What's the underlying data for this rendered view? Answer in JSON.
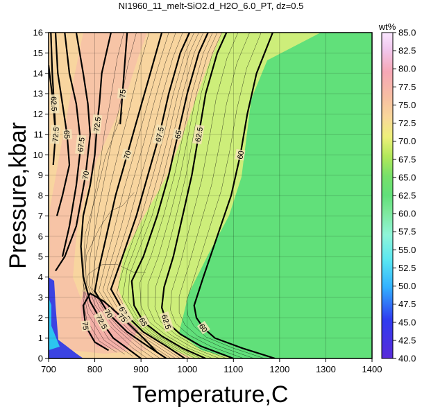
{
  "chart_data": {
    "type": "contour",
    "title": "NI1960_11_melt-SiO2.d_H2O_6.0_PT, dz=0.5",
    "xlabel": "Temperature,C",
    "ylabel": "Pressure,kbar",
    "xlim": [
      700,
      1400
    ],
    "ylim": [
      0,
      16
    ],
    "xticks": [
      "700",
      "800",
      "900",
      "1000",
      "1100",
      "1200",
      "1300",
      "1400"
    ],
    "yticks": [
      "0",
      "1",
      "2",
      "3",
      "4",
      "5",
      "6",
      "7",
      "8",
      "9",
      "10",
      "11",
      "12",
      "13",
      "14",
      "15",
      "16"
    ],
    "grid": true,
    "colorbar": {
      "label": "wt%",
      "range": [
        40,
        85
      ],
      "ticks": [
        "40.0",
        "42.5",
        "45.0",
        "47.5",
        "50.0",
        "52.5",
        "55.0",
        "57.5",
        "60.0",
        "62.5",
        "65.0",
        "67.5",
        "70.0",
        "72.5",
        "75.0",
        "77.5",
        "80.0",
        "82.5",
        "85.0"
      ]
    },
    "contour_lines": [
      {
        "level": 60,
        "label": "60",
        "points": [
          [
            1190,
            0
          ],
          [
            1120,
            0.5
          ],
          [
            1060,
            1
          ],
          [
            1035,
            1.5
          ],
          [
            1020,
            2
          ],
          [
            1015,
            2.6
          ],
          [
            1035,
            4
          ],
          [
            1065,
            6
          ],
          [
            1095,
            8
          ],
          [
            1115,
            10
          ],
          [
            1130,
            12
          ],
          [
            1150,
            14
          ],
          [
            1185,
            16
          ]
        ]
      },
      {
        "level": 62.5,
        "label": "62.5",
        "points": [
          [
            1100,
            0
          ],
          [
            1030,
            0.6
          ],
          [
            985,
            1.2
          ],
          [
            955,
            1.8
          ],
          [
            945,
            2.5
          ],
          [
            950,
            3.5
          ],
          [
            970,
            5
          ],
          [
            990,
            7
          ],
          [
            1010,
            9
          ],
          [
            1025,
            11
          ],
          [
            1040,
            13
          ],
          [
            1065,
            15
          ],
          [
            1085,
            16
          ]
        ]
      },
      {
        "level": 65,
        "label": "65",
        "points": [
          [
            1040,
            0
          ],
          [
            990,
            0.5
          ],
          [
            945,
            1.1
          ],
          [
            905,
            1.8
          ],
          [
            885,
            2.6
          ],
          [
            880,
            3.8
          ],
          [
            905,
            5
          ],
          [
            935,
            7
          ],
          [
            960,
            9
          ],
          [
            980,
            11
          ],
          [
            1000,
            13
          ],
          [
            1025,
            15
          ],
          [
            1045,
            16
          ]
        ]
      },
      {
        "level": 67.5,
        "label": "67.5",
        "points": [
          [
            995,
            0
          ],
          [
            955,
            0.6
          ],
          [
            905,
            1.3
          ],
          [
            865,
            2.2
          ],
          [
            835,
            3.4
          ],
          [
            860,
            5
          ],
          [
            890,
            7
          ],
          [
            915,
            9
          ],
          [
            940,
            11
          ],
          [
            960,
            13
          ],
          [
            985,
            15
          ],
          [
            1005,
            16
          ]
        ]
      },
      {
        "level": 70,
        "label": "70",
        "points": [
          [
            955,
            0
          ],
          [
            915,
            0.6
          ],
          [
            870,
            1.3
          ],
          [
            830,
            2.2
          ],
          [
            800,
            3.3
          ],
          [
            810,
            4.5
          ],
          [
            825,
            6
          ],
          [
            845,
            8
          ],
          [
            870,
            10
          ],
          [
            895,
            12
          ],
          [
            920,
            14
          ],
          [
            945,
            16
          ]
        ]
      },
      {
        "level": 72.5,
        "label": "72.5",
        "points": [
          [
            900,
            0
          ],
          [
            870,
            0.5
          ],
          [
            840,
            1.0
          ],
          [
            815,
            1.8
          ],
          [
            790,
            2.8
          ],
          [
            775,
            4
          ],
          [
            770,
            5.5
          ],
          [
            775,
            7
          ],
          [
            790,
            8.5
          ],
          [
            800,
            10
          ],
          [
            805,
            11.5
          ],
          [
            810,
            12.5
          ],
          [
            815,
            14
          ],
          [
            825,
            15
          ],
          [
            835,
            16
          ]
        ]
      },
      {
        "level": 75,
        "label": "75",
        "points": [
          [
            830,
            0.4
          ],
          [
            800,
            0.8
          ],
          [
            780,
            1.6
          ],
          [
            775,
            2.6
          ],
          [
            790,
            3.2
          ],
          [
            820,
            2.8
          ],
          [
            860,
            2.0
          ],
          [
            905,
            1.0
          ],
          [
            935,
            0.3
          ]
        ]
      },
      {
        "level": 72.5,
        "label": "72.5",
        "points": [
          [
            700,
            14.4
          ],
          [
            710,
            12.5
          ],
          [
            715,
            11
          ],
          [
            710,
            9.5
          ]
        ]
      },
      {
        "level": 65,
        "label": "65",
        "points": [
          [
            715,
            16
          ],
          [
            720,
            14
          ],
          [
            730,
            12.5
          ],
          [
            740,
            11
          ],
          [
            745,
            9.5
          ],
          [
            730,
            8
          ],
          [
            718,
            7
          ]
        ]
      },
      {
        "level": 67.5,
        "label": "67.5",
        "points": [
          [
            735,
            16
          ],
          [
            745,
            14
          ],
          [
            760,
            12.5
          ],
          [
            770,
            10.5
          ],
          [
            760,
            8.5
          ],
          [
            745,
            6.5
          ],
          [
            730,
            5
          ]
        ]
      },
      {
        "level": 70,
        "label": "70",
        "points": [
          [
            760,
            16
          ],
          [
            775,
            14
          ],
          [
            785,
            12.5
          ],
          [
            790,
            11
          ],
          [
            780,
            9
          ],
          [
            760,
            6.5
          ],
          [
            735,
            5
          ],
          [
            715,
            4.3
          ]
        ]
      },
      {
        "level": 62.5,
        "label": "62.5",
        "points": [
          [
            705,
            16
          ],
          [
            708,
            14
          ],
          [
            712,
            12.5
          ],
          [
            715,
            11
          ]
        ]
      },
      {
        "level": 75,
        "label": "75",
        "points": [
          [
            870,
            16
          ],
          [
            865,
            14.5
          ],
          [
            860,
            13
          ],
          [
            855,
            11.5
          ]
        ]
      }
    ],
    "contour_labels": [
      "72.5",
      "72",
      "67.5",
      "65",
      "62.5",
      "60",
      "62.5",
      "65",
      "67.5",
      "70",
      "72.5",
      "70",
      "72.5",
      "65",
      "67.5",
      "70",
      "72.5",
      "70",
      "65",
      "60",
      "62.5",
      "67.5",
      "72.5",
      "65",
      "72.5",
      "70",
      "72.5",
      "75",
      "75",
      "72.5",
      "70",
      "67.5",
      "65",
      "62.5",
      "60",
      "75",
      "67.5",
      "65",
      "70",
      "72.5",
      "65"
    ]
  }
}
